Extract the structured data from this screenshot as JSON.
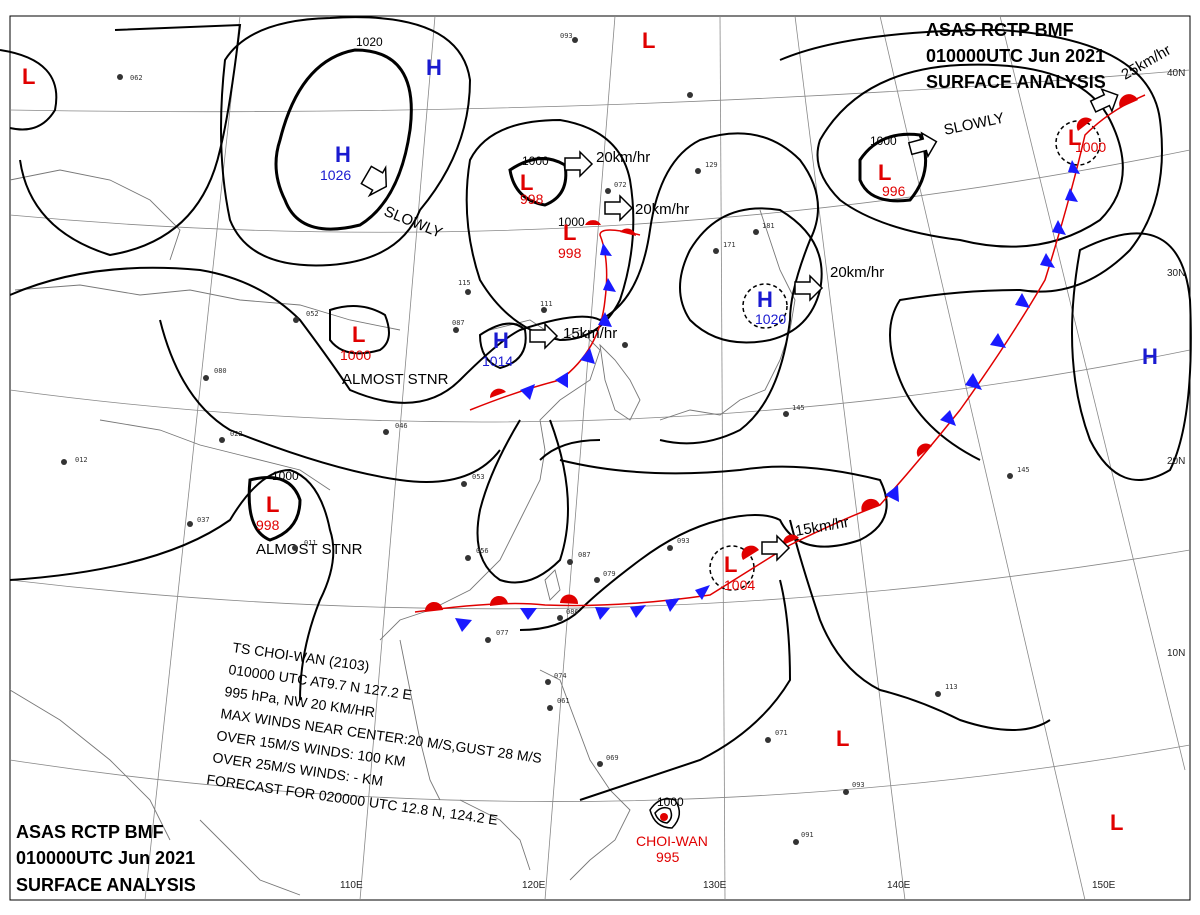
{
  "header_top": {
    "line1": "ASAS    RCTP    BMF",
    "line2": "010000UTC    Jun    2021",
    "line3": "SURFACE ANALYSIS"
  },
  "header_bottom": {
    "line1": "ASAS    RCTP    BMF",
    "line2": "010000UTC    Jun    2021",
    "line3": "SURFACE ANALYSIS"
  },
  "longitudes": [
    "110E",
    "120E",
    "130E",
    "140E",
    "150E"
  ],
  "latitudes": [
    "40N",
    "30N",
    "20N",
    "10N"
  ],
  "isobar_labels": [
    "1020",
    "1000",
    "1000",
    "1000",
    "1000",
    "1000"
  ],
  "systems": [
    {
      "type": "H",
      "value": "1026"
    },
    {
      "type": "H",
      "value": ""
    },
    {
      "type": "L",
      "value": "998"
    },
    {
      "type": "L",
      "value": "998"
    },
    {
      "type": "H",
      "value": "1014"
    },
    {
      "type": "L",
      "value": "1000"
    },
    {
      "type": "L",
      "value": "996"
    },
    {
      "type": "H",
      "value": "1020"
    },
    {
      "type": "L",
      "value": "1000"
    },
    {
      "type": "L",
      "value": "998"
    },
    {
      "type": "L",
      "value": "1004"
    },
    {
      "type": "H",
      "value": ""
    },
    {
      "type": "L",
      "value": ""
    },
    {
      "type": "L",
      "value": ""
    },
    {
      "type": "L",
      "value": ""
    },
    {
      "type": "L",
      "value": ""
    }
  ],
  "motions": [
    "SLOWLY",
    "20km/hr",
    "20km/hr",
    "15km/hr",
    "SLOWLY",
    "20km/hr",
    "ALMOST STNR",
    "ALMOST STNR",
    "15km/hr",
    "25km/hr"
  ],
  "typhoon": {
    "name": "CHOI-WAN",
    "pressure": "995",
    "isobar": "1000"
  },
  "ts_info": {
    "l1": "TS   CHOI-WAN   (2103)",
    "l2": "010000 UTC   AT9.7 N  127.2 E",
    "l3": "995 hPa, NW  20 KM/HR",
    "l4": "MAX WINDS NEAR CENTER:20 M/S,GUST 28 M/S",
    "l5": "OVER 15M/S WINDS: 100 KM",
    "l6": "OVER 25M/S WINDS:  - KM",
    "l7": "FORECAST FOR 020000 UTC 12.8 N, 124.2 E"
  },
  "station_obs": [
    "062",
    "093",
    "115",
    "087",
    "111",
    "052",
    "080",
    "022",
    "012",
    "037",
    "011",
    "046",
    "053",
    "056",
    "087",
    "079",
    "086",
    "077",
    "093",
    "145",
    "113",
    "071",
    "093",
    "091",
    "069",
    "074",
    "061",
    "145",
    "181",
    "171",
    "129",
    "072"
  ],
  "colors": {
    "warm": "#e00000",
    "cold": "#1a1aff",
    "high": "#1a1ad0",
    "low": "#e00000"
  }
}
